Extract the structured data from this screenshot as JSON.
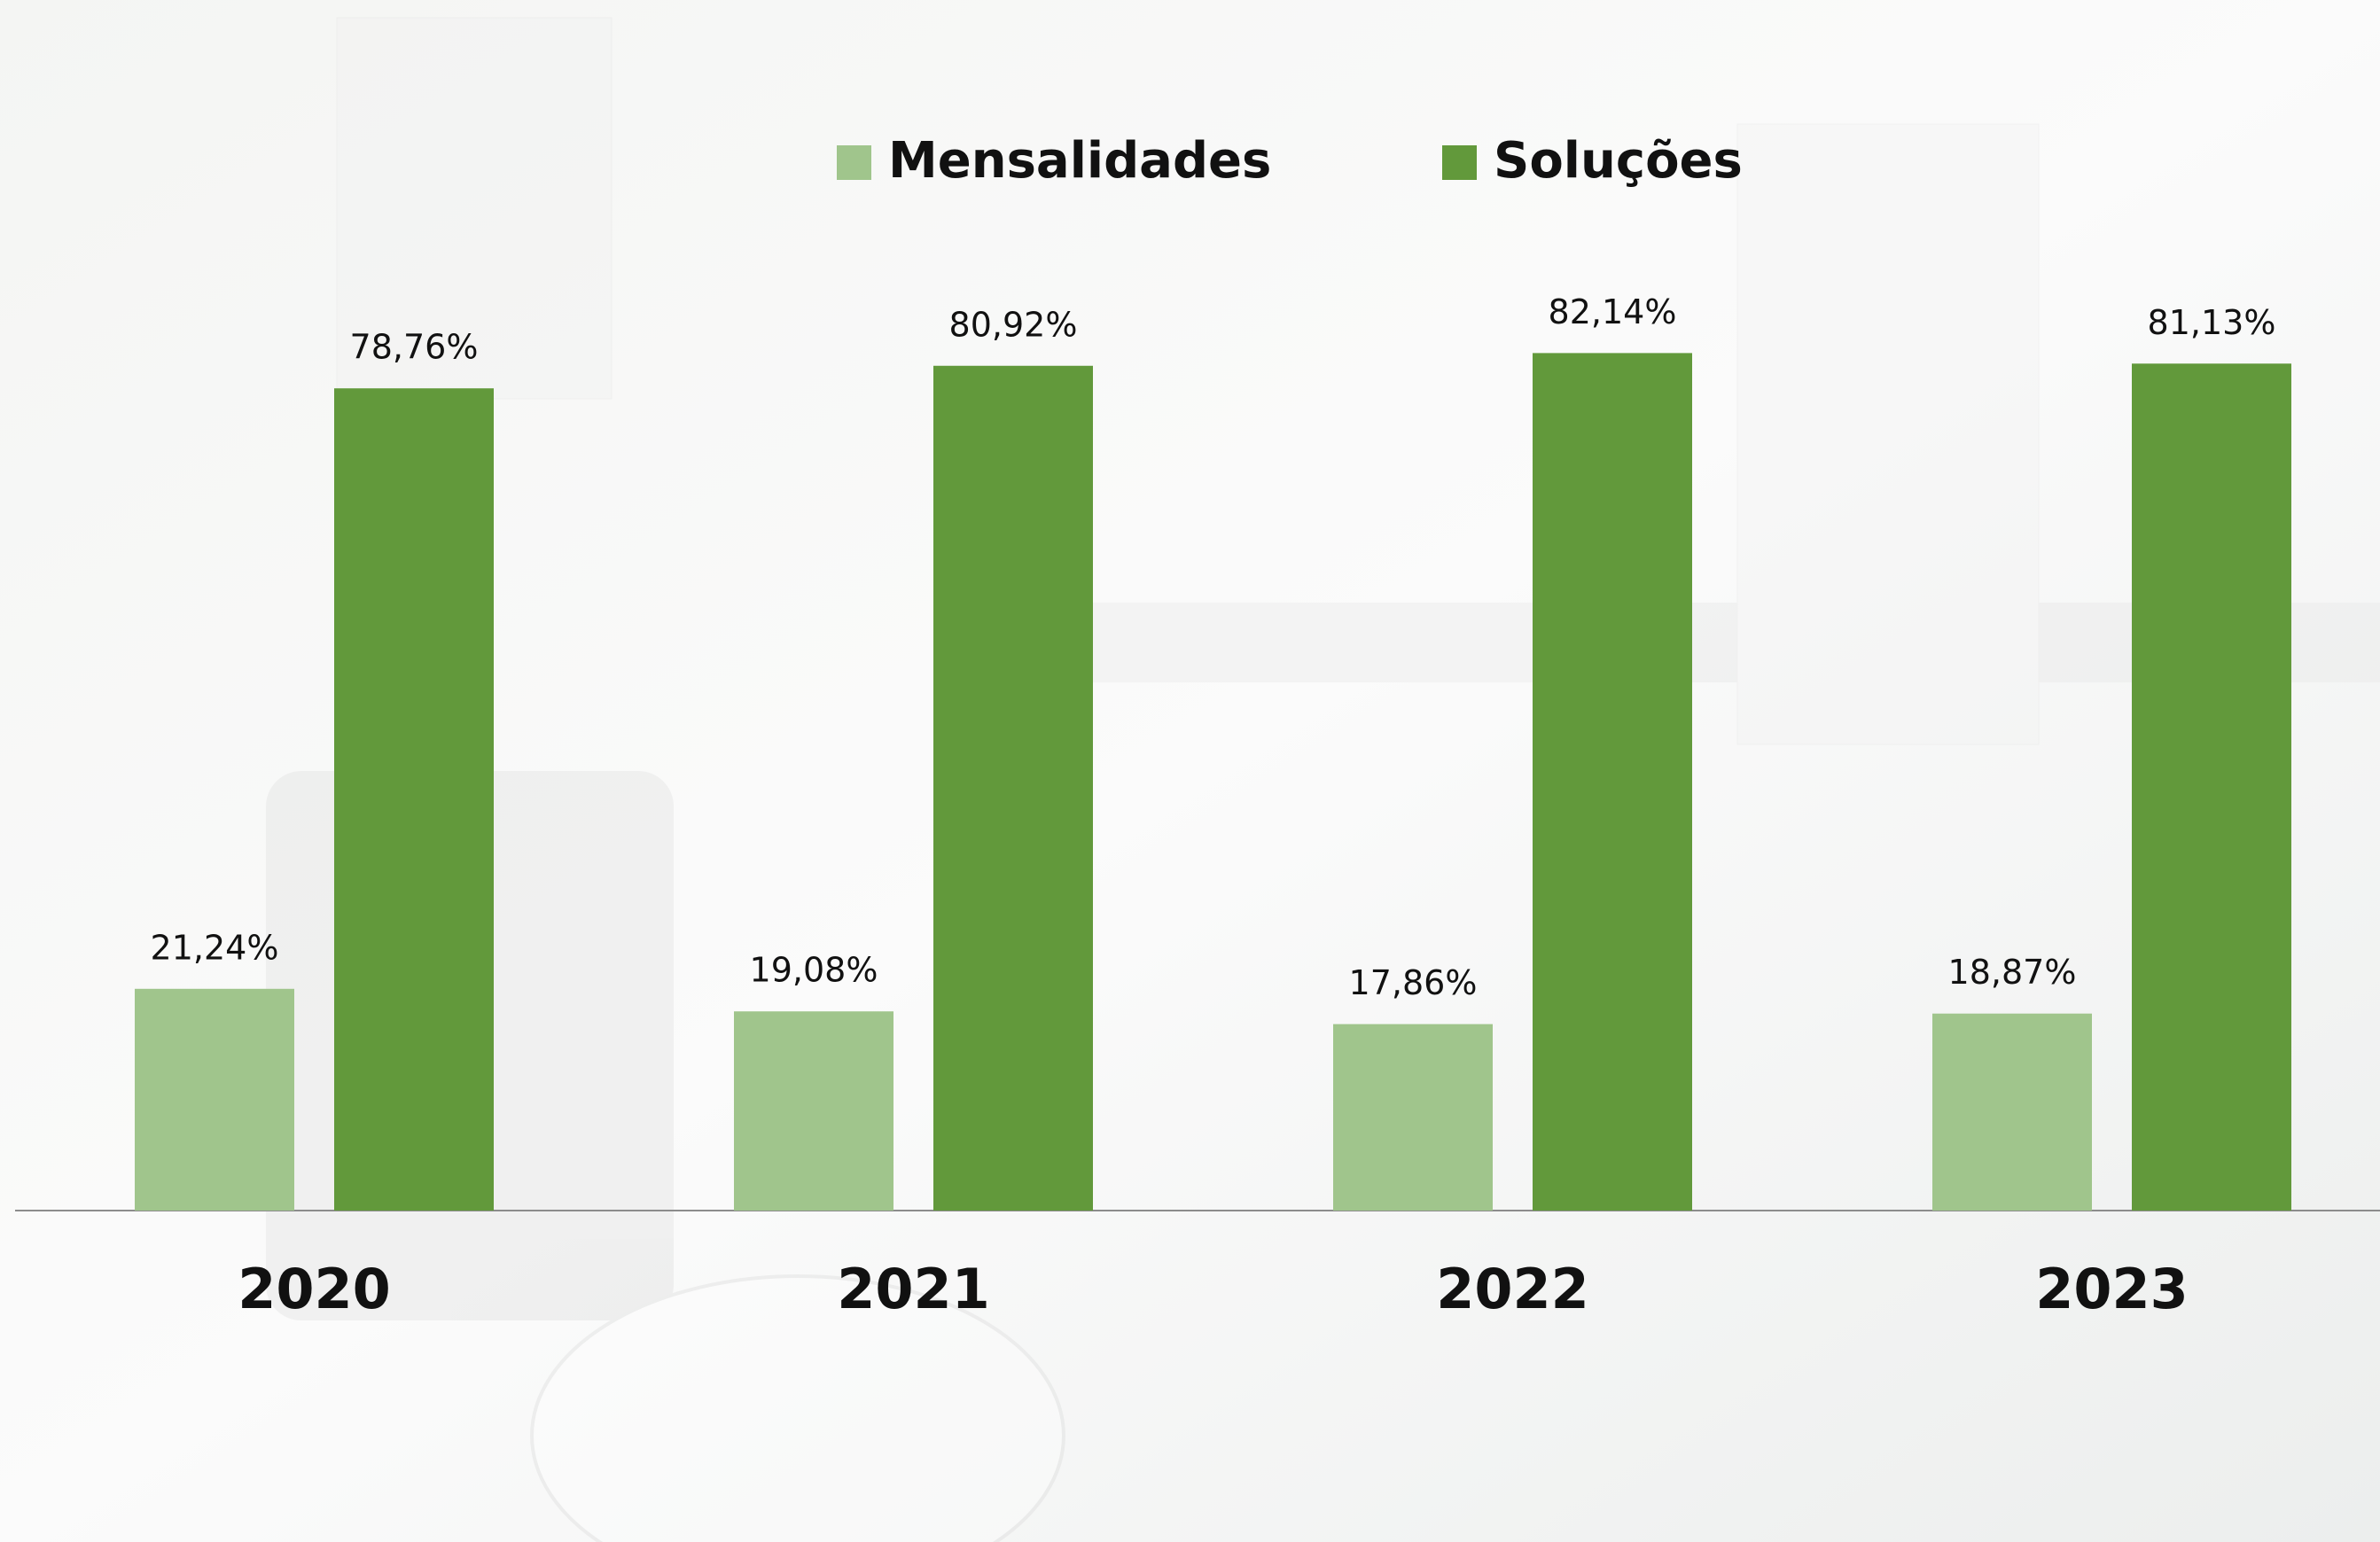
{
  "chart_data": {
    "type": "bar",
    "categories": [
      "2020",
      "2021",
      "2022",
      "2023"
    ],
    "series": [
      {
        "name": "Mensalidades",
        "color": "#a0c58c",
        "values": [
          21.24,
          19.08,
          17.86,
          18.87
        ],
        "value_labels": [
          "21,24%",
          "19,08%",
          "17,86%",
          "18,87%"
        ]
      },
      {
        "name": "Soluções",
        "color": "#62993b",
        "values": [
          78.76,
          80.92,
          82.14,
          81.13
        ],
        "value_labels": [
          "78,76%",
          "80,92%",
          "82,14%",
          "81,13%"
        ]
      }
    ],
    "legend": "top"
  }
}
